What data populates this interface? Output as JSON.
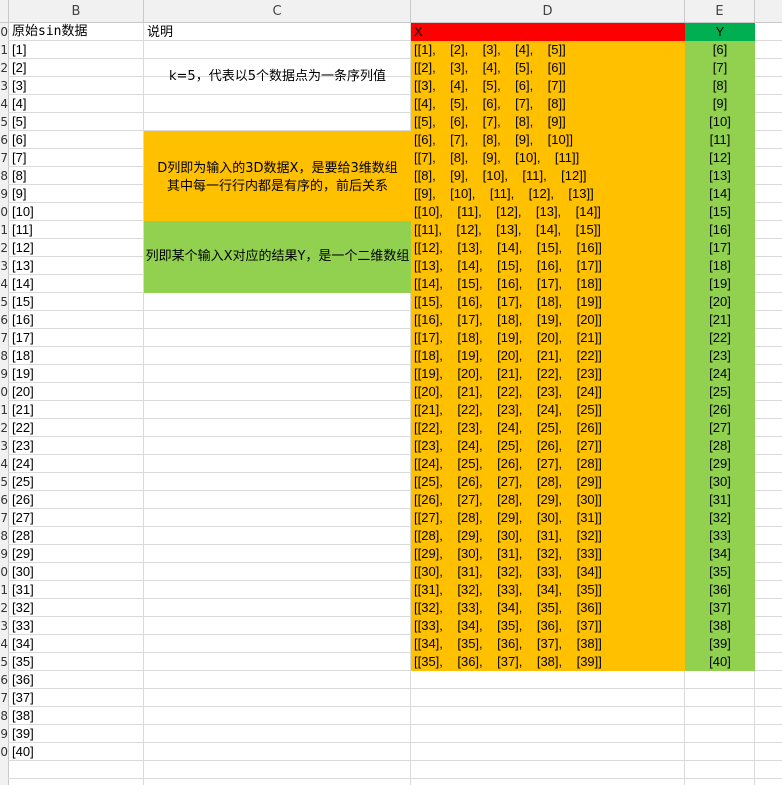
{
  "columns": [
    "B",
    "C",
    "D",
    "E"
  ],
  "headers": {
    "b": "原始sin数据",
    "c": "说明",
    "d": "X",
    "e": "Y"
  },
  "row_numbers": [
    "0",
    "1",
    "2",
    "3",
    "4",
    "5",
    "6",
    "7",
    "8",
    "9",
    "0",
    "1",
    "2",
    "3",
    "4",
    "5",
    "6",
    "7",
    "8",
    "9",
    "0",
    "1",
    "2",
    "3",
    "4",
    "5",
    "6",
    "7",
    "8",
    "9",
    "0",
    "1",
    "2",
    "3",
    "4",
    "5",
    "6",
    "7",
    "8",
    "9",
    "0"
  ],
  "b_values": [
    "[1]",
    "[2]",
    "[3]",
    "[4]",
    "[5]",
    "[6]",
    "[7]",
    "[8]",
    "[9]",
    "[10]",
    "[11]",
    "[12]",
    "[13]",
    "[14]",
    "[15]",
    "[16]",
    "[17]",
    "[18]",
    "[19]",
    "[20]",
    "[21]",
    "[22]",
    "[23]",
    "[24]",
    "[25]",
    "[26]",
    "[27]",
    "[28]",
    "[29]",
    "[30]",
    "[31]",
    "[32]",
    "[33]",
    "[34]",
    "[35]",
    "[36]",
    "[37]",
    "[38]",
    "[39]",
    "[40]"
  ],
  "x_values": [
    "[[1],    [2],    [3],    [4],    [5]]",
    "[[2],    [3],    [4],    [5],    [6]]",
    "[[3],    [4],    [5],    [6],    [7]]",
    "[[4],    [5],    [6],    [7],    [8]]",
    "[[5],    [6],    [7],    [8],    [9]]",
    "[[6],    [7],    [8],    [9],    [10]]",
    "[[7],    [8],    [9],    [10],    [11]]",
    "[[8],    [9],    [10],    [11],    [12]]",
    "[[9],    [10],    [11],    [12],    [13]]",
    "[[10],    [11],    [12],    [13],    [14]]",
    "[[11],    [12],    [13],    [14],    [15]]",
    "[[12],    [13],    [14],    [15],    [16]]",
    "[[13],    [14],    [15],    [16],    [17]]",
    "[[14],    [15],    [16],    [17],    [18]]",
    "[[15],    [16],    [17],    [18],    [19]]",
    "[[16],    [17],    [18],    [19],    [20]]",
    "[[17],    [18],    [19],    [20],    [21]]",
    "[[18],    [19],    [20],    [21],    [22]]",
    "[[19],    [20],    [21],    [22],    [23]]",
    "[[20],    [21],    [22],    [23],    [24]]",
    "[[21],    [22],    [23],    [24],    [25]]",
    "[[22],    [23],    [24],    [25],    [26]]",
    "[[23],    [24],    [25],    [26],    [27]]",
    "[[24],    [25],    [26],    [27],    [28]]",
    "[[25],    [26],    [27],    [28],    [29]]",
    "[[26],    [27],    [28],    [29],    [30]]",
    "[[27],    [28],    [29],    [30],    [31]]",
    "[[28],    [29],    [30],    [31],    [32]]",
    "[[29],    [30],    [31],    [32],    [33]]",
    "[[30],    [31],    [32],    [33],    [34]]",
    "[[31],    [32],    [33],    [34],    [35]]",
    "[[32],    [33],    [34],    [35],    [36]]",
    "[[33],    [34],    [35],    [36],    [37]]",
    "[[34],    [35],    [36],    [37],    [38]]",
    "[[35],    [36],    [37],    [38],    [39]]"
  ],
  "y_values": [
    "[6]",
    "[7]",
    "[8]",
    "[9]",
    "[10]",
    "[11]",
    "[12]",
    "[13]",
    "[14]",
    "[15]",
    "[16]",
    "[17]",
    "[18]",
    "[19]",
    "[20]",
    "[21]",
    "[22]",
    "[23]",
    "[24]",
    "[25]",
    "[26]",
    "[27]",
    "[28]",
    "[29]",
    "[30]",
    "[31]",
    "[32]",
    "[33]",
    "[34]",
    "[35]",
    "[36]",
    "[37]",
    "[38]",
    "[39]",
    "[40]"
  ],
  "notes": {
    "k_note": "k=5，代表以5个数据点为一条序列值",
    "d_note_line1": "D列即为输入的3D数据X，是要给3维数组",
    "d_note_line2": "其中每一行行内都是有序的，前后关系",
    "e_note": "列即某个输入X对应的结果Y，是一个二维数组"
  },
  "colors": {
    "x_header": "#ff0000",
    "y_header": "#00b050",
    "x_fill": "#ffc000",
    "y_fill": "#92d050",
    "d_note_fill": "#ffc000",
    "e_note_fill": "#92d050",
    "header_bg": "#f1f1f1",
    "grid": "#dadada"
  }
}
